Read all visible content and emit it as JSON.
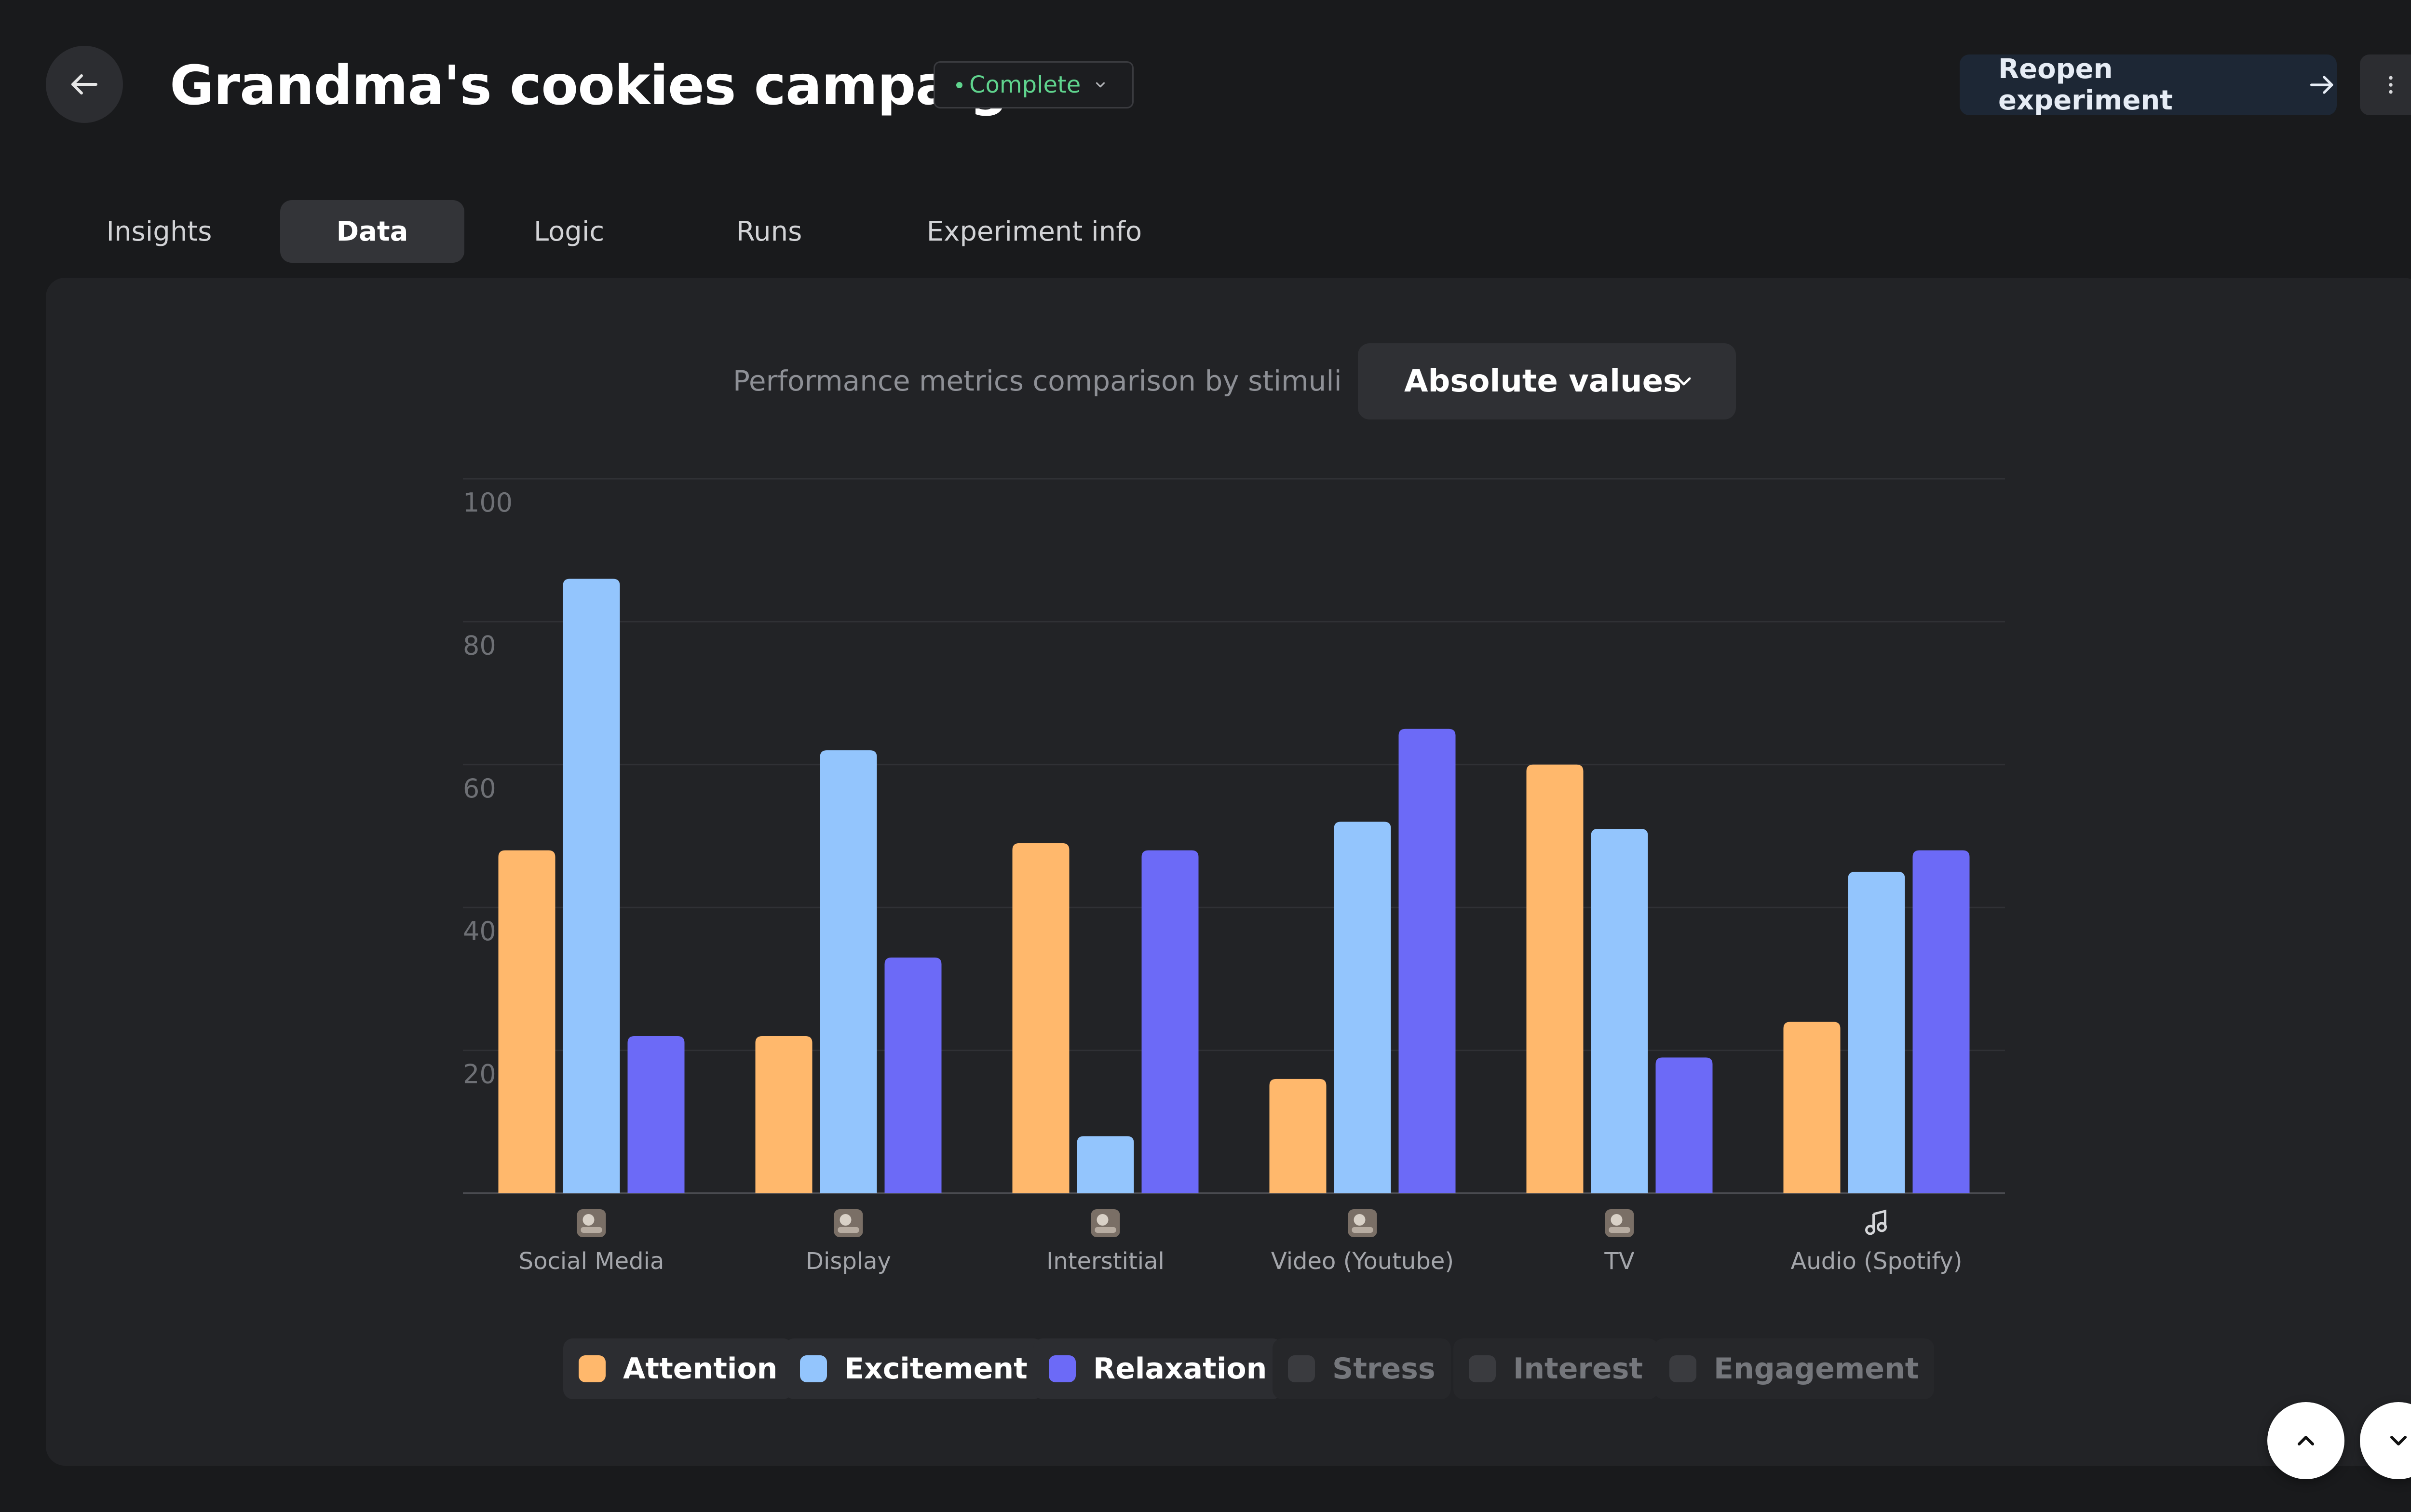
{
  "header": {
    "title": "Grandma's cookies campaign",
    "status": "Complete",
    "reopen_label": "Reopen experiment",
    "back_icon": "arrow-left-icon",
    "more_icon": "vertical-dots-icon"
  },
  "tabs": [
    {
      "label": "Insights",
      "active": false
    },
    {
      "label": "Data",
      "active": true
    },
    {
      "label": "Logic",
      "active": false
    },
    {
      "label": "Runs",
      "active": false
    },
    {
      "label": "Experiment info",
      "active": false
    }
  ],
  "chart_controls": {
    "heading": "Performance metrics comparison by stimuli",
    "mode_selected": "Absolute values"
  },
  "legend": [
    {
      "label": "Attention",
      "color": "#ffb86c",
      "enabled": true
    },
    {
      "label": "Excitement",
      "color": "#93c5fd",
      "enabled": true
    },
    {
      "label": "Relaxation",
      "color": "#6c6af7",
      "enabled": true
    },
    {
      "label": "Stress",
      "color": "#3a3b3f",
      "enabled": false
    },
    {
      "label": "Interest",
      "color": "#3a3b3f",
      "enabled": false
    },
    {
      "label": "Engagement",
      "color": "#3a3b3f",
      "enabled": false
    }
  ],
  "chart_data": {
    "type": "bar",
    "title": "Performance metrics comparison by stimuli",
    "categories": [
      "Social Media",
      "Display",
      "Interstitial",
      "Video (Youtube)",
      "TV",
      "Audio (Spotify)"
    ],
    "category_icons": [
      "thumbnail-image-icon",
      "thumbnail-image-icon",
      "thumbnail-image-icon",
      "thumbnail-image-icon",
      "thumbnail-image-icon",
      "music-note-icon"
    ],
    "series": [
      {
        "name": "Attention",
        "color": "#ffb86c",
        "values": [
          48,
          22,
          49,
          16,
          60,
          24
        ]
      },
      {
        "name": "Excitement",
        "color": "#93c5fd",
        "values": [
          86,
          62,
          8,
          52,
          51,
          45
        ]
      },
      {
        "name": "Relaxation",
        "color": "#6c6af7",
        "values": [
          22,
          33,
          48,
          65,
          19,
          48
        ]
      }
    ],
    "ylim": [
      0,
      100
    ],
    "yticks": [
      20,
      40,
      60,
      80,
      100
    ],
    "grid": true,
    "xlabel": "",
    "ylabel": ""
  },
  "scroll": {
    "up_icon": "chevron-up-icon",
    "down_icon": "chevron-down-icon"
  }
}
